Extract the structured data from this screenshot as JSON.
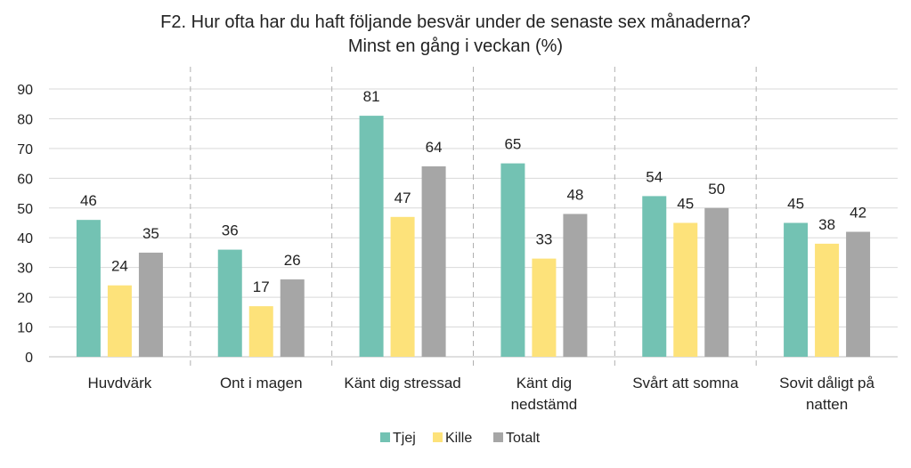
{
  "chart_data": {
    "type": "bar",
    "title": "F2. Hur ofta har du haft följande besvär under de senaste sex månaderna?",
    "subtitle": "Minst en gång i veckan (%)",
    "categories": [
      [
        "Huvdvärk"
      ],
      [
        "Ont i magen"
      ],
      [
        "Känt dig stressad"
      ],
      [
        "Känt dig",
        "nedstämd"
      ],
      [
        "Svårt att somna"
      ],
      [
        "Sovit dåligt på",
        "natten"
      ]
    ],
    "series": [
      {
        "name": "Tjej",
        "color": "#73c2b3",
        "values": [
          46,
          36,
          81,
          65,
          54,
          45
        ]
      },
      {
        "name": "Kille",
        "color": "#fde27a",
        "values": [
          24,
          17,
          47,
          33,
          45,
          38
        ]
      },
      {
        "name": "Totalt",
        "color": "#a6a6a6",
        "values": [
          35,
          26,
          64,
          48,
          50,
          42
        ]
      }
    ],
    "ylim": [
      0,
      90
    ],
    "yticks": [
      "0",
      "10",
      "20",
      "30",
      "40",
      "50",
      "60",
      "70",
      "80",
      "90"
    ],
    "grid": true,
    "legend_position": "bottom"
  }
}
